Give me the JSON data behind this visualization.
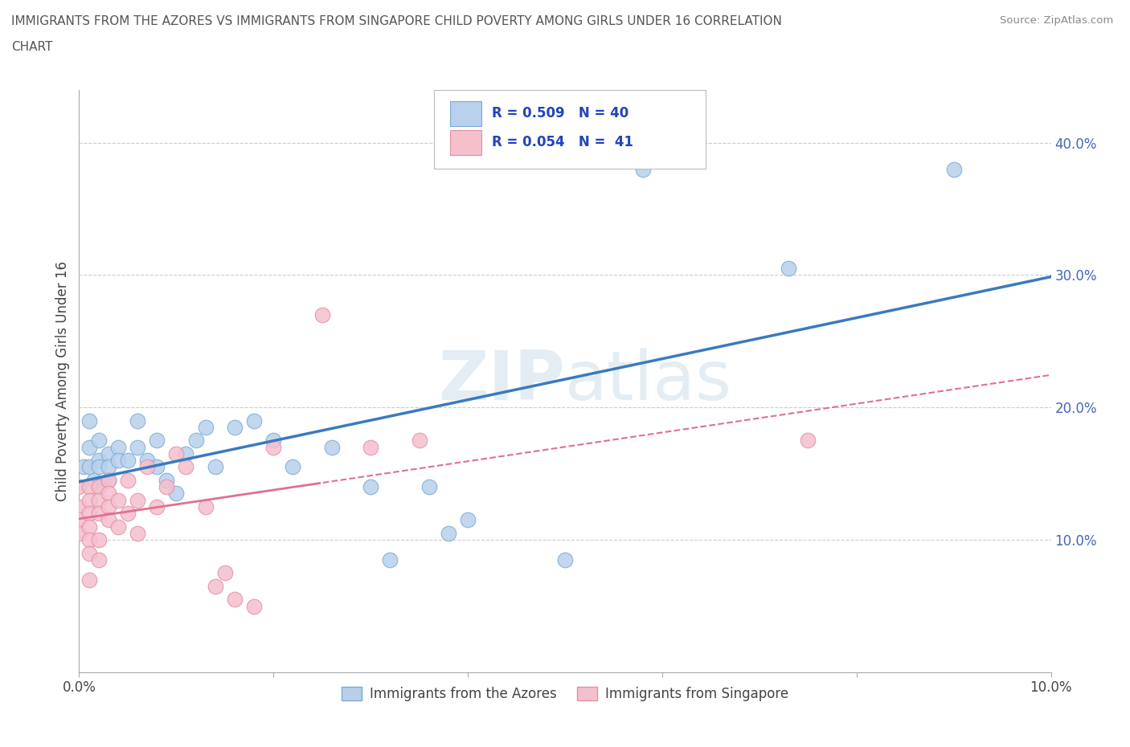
{
  "title_line1": "IMMIGRANTS FROM THE AZORES VS IMMIGRANTS FROM SINGAPORE CHILD POVERTY AMONG GIRLS UNDER 16 CORRELATION",
  "title_line2": "CHART",
  "source": "Source: ZipAtlas.com",
  "ylabel": "Child Poverty Among Girls Under 16",
  "xlim": [
    0.0,
    0.1
  ],
  "ylim": [
    0.0,
    0.44
  ],
  "grid_color": "#cccccc",
  "background_color": "#ffffff",
  "watermark": "ZIPatlas",
  "azores_color": "#b8d0ec",
  "azores_edge": "#7aaad4",
  "singapore_color": "#f5bfcc",
  "singapore_edge": "#e090a8",
  "azores_line_color": "#3a7abf",
  "singapore_line_color": "#e07090",
  "R_azores": 0.509,
  "N_azores": 40,
  "R_singapore": 0.054,
  "N_singapore": 41,
  "legend_label_azores": "Immigrants from the Azores",
  "legend_label_singapore": "Immigrants from Singapore",
  "azores_x": [
    0.0005,
    0.001,
    0.001,
    0.001,
    0.0015,
    0.002,
    0.002,
    0.002,
    0.002,
    0.003,
    0.003,
    0.003,
    0.004,
    0.004,
    0.005,
    0.006,
    0.006,
    0.007,
    0.008,
    0.008,
    0.009,
    0.01,
    0.011,
    0.012,
    0.013,
    0.014,
    0.016,
    0.018,
    0.02,
    0.022,
    0.026,
    0.03,
    0.032,
    0.036,
    0.038,
    0.04,
    0.05,
    0.058,
    0.073,
    0.09
  ],
  "azores_y": [
    0.155,
    0.19,
    0.17,
    0.155,
    0.145,
    0.175,
    0.16,
    0.155,
    0.14,
    0.165,
    0.155,
    0.145,
    0.17,
    0.16,
    0.16,
    0.19,
    0.17,
    0.16,
    0.175,
    0.155,
    0.145,
    0.135,
    0.165,
    0.175,
    0.185,
    0.155,
    0.185,
    0.19,
    0.175,
    0.155,
    0.17,
    0.14,
    0.085,
    0.14,
    0.105,
    0.115,
    0.085,
    0.38,
    0.305,
    0.38
  ],
  "singapore_x": [
    0.0,
    0.0,
    0.0,
    0.0,
    0.001,
    0.001,
    0.001,
    0.001,
    0.001,
    0.001,
    0.001,
    0.002,
    0.002,
    0.002,
    0.002,
    0.002,
    0.003,
    0.003,
    0.003,
    0.003,
    0.004,
    0.004,
    0.005,
    0.005,
    0.006,
    0.006,
    0.007,
    0.008,
    0.009,
    0.01,
    0.011,
    0.013,
    0.014,
    0.015,
    0.016,
    0.018,
    0.02,
    0.025,
    0.03,
    0.035,
    0.075
  ],
  "singapore_y": [
    0.14,
    0.125,
    0.115,
    0.105,
    0.14,
    0.13,
    0.12,
    0.11,
    0.1,
    0.09,
    0.07,
    0.14,
    0.13,
    0.12,
    0.1,
    0.085,
    0.145,
    0.135,
    0.125,
    0.115,
    0.13,
    0.11,
    0.145,
    0.12,
    0.13,
    0.105,
    0.155,
    0.125,
    0.14,
    0.165,
    0.155,
    0.125,
    0.065,
    0.075,
    0.055,
    0.05,
    0.17,
    0.27,
    0.17,
    0.175,
    0.175
  ]
}
